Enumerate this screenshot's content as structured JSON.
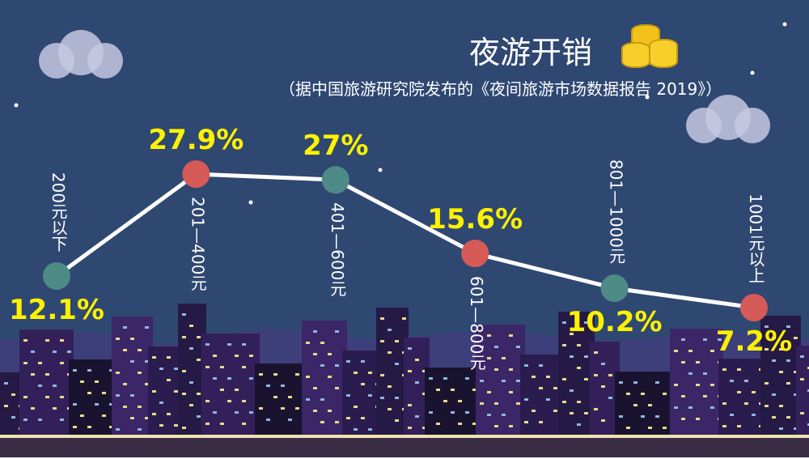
{
  "chart_data": {
    "type": "line",
    "title": "夜游开销",
    "subtitle": "（据中国旅游研究院发布的《夜间旅游市场数据报告 2019》）",
    "categories": [
      "200元以下",
      "201—400元",
      "401—600元",
      "601—800元",
      "801—1000元",
      "1001元以上"
    ],
    "values": [
      12.1,
      27.9,
      27,
      15.6,
      10.2,
      7.2
    ],
    "value_labels": [
      "12.1%",
      "27.9%",
      "27%",
      "15.6%",
      "10.2%",
      "7.2%"
    ],
    "unit": "%",
    "grid": false,
    "colors": {
      "background": "#2f4872",
      "line": "#ffffff",
      "dot_a": "#4e8a86",
      "dot_b": "#d65b58",
      "value_text": "#fff200"
    }
  }
}
